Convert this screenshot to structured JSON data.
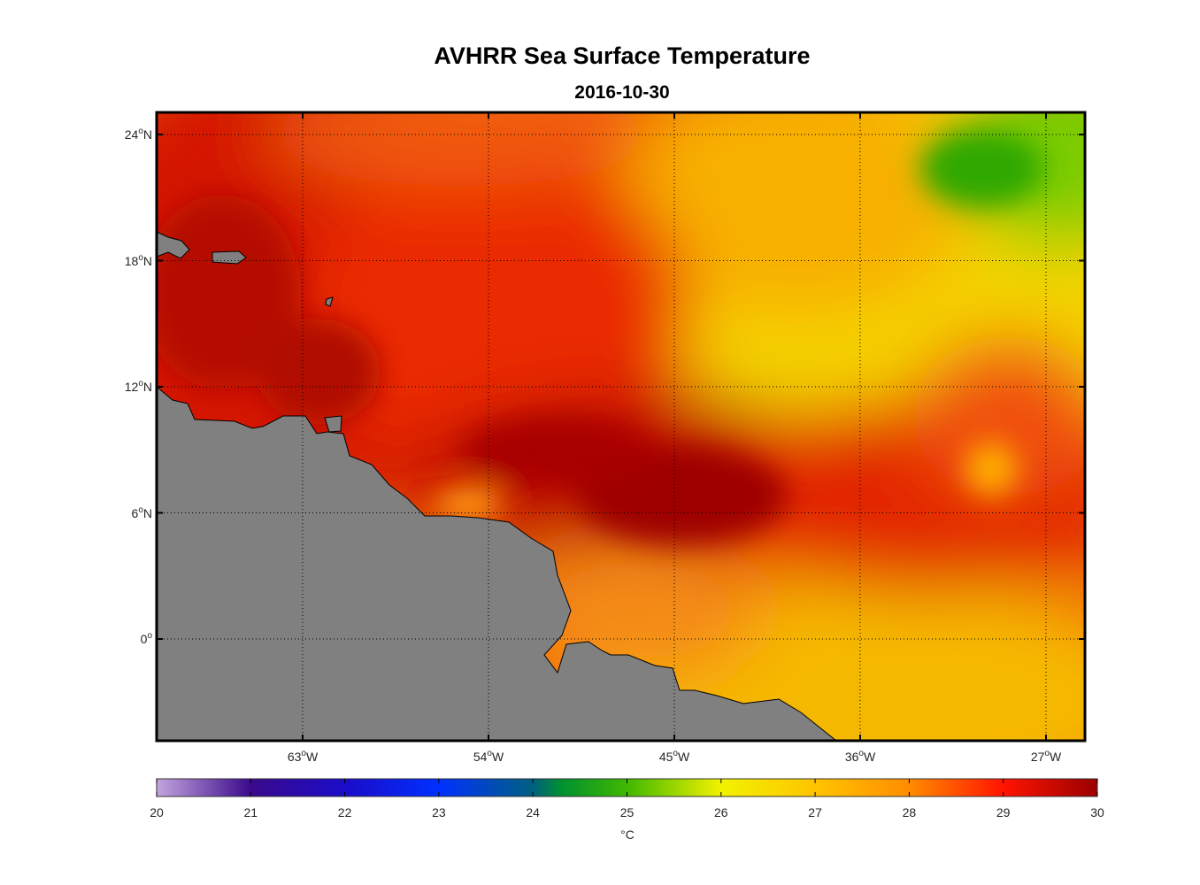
{
  "title": "AVHRR Sea Surface Temperature",
  "subtitle": "2016-10-30",
  "map": {
    "lat_ticks": [
      {
        "value": 24,
        "label": "24",
        "hemi": "N"
      },
      {
        "value": 18,
        "label": "18",
        "hemi": "N"
      },
      {
        "value": 12,
        "label": "12",
        "hemi": "N"
      },
      {
        "value": 6,
        "label": "6",
        "hemi": "N"
      },
      {
        "value": 0,
        "label": "0",
        "hemi": ""
      }
    ],
    "lon_ticks": [
      {
        "value": -63,
        "label": "63",
        "hemi": "W"
      },
      {
        "value": -54,
        "label": "54",
        "hemi": "W"
      },
      {
        "value": -45,
        "label": "45",
        "hemi": "W"
      },
      {
        "value": -36,
        "label": "36",
        "hemi": "W"
      },
      {
        "value": -27,
        "label": "27",
        "hemi": "W"
      }
    ],
    "degree_symbol": "o",
    "land_color": "#808080",
    "grid": true
  },
  "colorbar": {
    "ticks": [
      "20",
      "21",
      "22",
      "23",
      "24",
      "25",
      "26",
      "27",
      "28",
      "29",
      "30"
    ],
    "unit": "°C",
    "range": [
      20,
      30
    ]
  }
}
